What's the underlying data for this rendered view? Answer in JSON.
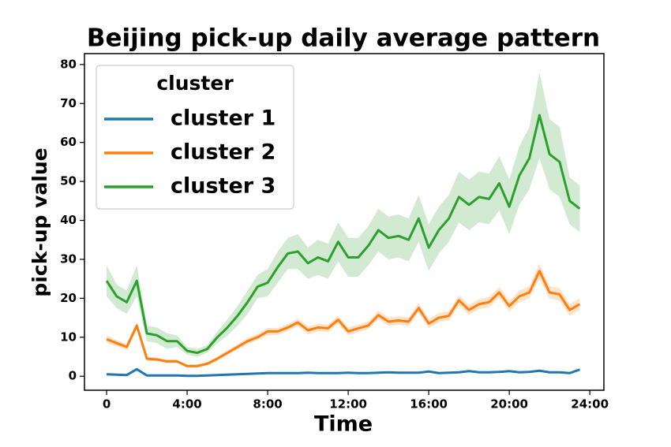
{
  "chart_data": {
    "type": "line",
    "title": "Beijing pick-up daily average pattern",
    "xlabel": "Time",
    "ylabel": "pick-up value",
    "x": [
      0,
      0.5,
      1,
      1.5,
      2,
      2.5,
      3,
      3.5,
      4,
      4.5,
      5,
      5.5,
      6,
      6.5,
      7,
      7.5,
      8,
      8.5,
      9,
      9.5,
      10,
      10.5,
      11,
      11.5,
      12,
      12.5,
      13,
      13.5,
      14,
      14.5,
      15,
      15.5,
      16,
      16.5,
      17,
      17.5,
      18,
      18.5,
      19,
      19.5,
      20,
      20.5,
      21,
      21.5,
      22,
      22.5,
      23,
      23.5
    ],
    "series": [
      {
        "name": "cluster 1",
        "color": "#1f77b4",
        "values": [
          0.5,
          0.4,
          0.3,
          1.8,
          0.2,
          0.2,
          0.2,
          0.2,
          0.1,
          0.1,
          0.2,
          0.3,
          0.4,
          0.5,
          0.6,
          0.7,
          0.8,
          0.8,
          0.8,
          0.8,
          0.9,
          0.8,
          0.8,
          0.8,
          0.9,
          0.8,
          0.8,
          0.9,
          1,
          0.9,
          0.9,
          0.9,
          1.2,
          0.8,
          0.9,
          1,
          1.3,
          1,
          1,
          1.1,
          1.3,
          1,
          1.1,
          1.4,
          1,
          1,
          0.8,
          1.7
        ],
        "ci": [
          0.2,
          0.2,
          0.2,
          0.3,
          0.1,
          0.1,
          0.1,
          0.1,
          0.1,
          0.1,
          0.1,
          0.1,
          0.1,
          0.1,
          0.1,
          0.1,
          0.1,
          0.1,
          0.1,
          0.1,
          0.1,
          0.1,
          0.1,
          0.1,
          0.1,
          0.1,
          0.1,
          0.1,
          0.1,
          0.1,
          0.1,
          0.1,
          0.2,
          0.1,
          0.1,
          0.1,
          0.2,
          0.1,
          0.1,
          0.1,
          0.2,
          0.1,
          0.1,
          0.2,
          0.1,
          0.1,
          0.1,
          0.2
        ]
      },
      {
        "name": "cluster 2",
        "color": "#ff7f0e",
        "values": [
          9.5,
          8.5,
          7.5,
          13,
          4.5,
          4.3,
          3.8,
          3.8,
          2.6,
          2.6,
          3.2,
          4.5,
          6,
          7.5,
          9,
          10,
          11.5,
          11.5,
          12.5,
          13.8,
          11.8,
          12.5,
          12.3,
          14.5,
          11.5,
          12.3,
          13,
          15.7,
          14,
          14.3,
          14,
          17.5,
          13.5,
          15,
          15.5,
          19.5,
          17,
          18.5,
          19,
          21.5,
          18,
          20.5,
          21.5,
          27,
          21.5,
          21,
          17,
          18.5
        ],
        "ci": [
          1,
          0.8,
          0.8,
          1,
          0.5,
          0.5,
          0.5,
          0.4,
          0.4,
          0.4,
          0.4,
          0.5,
          0.6,
          0.7,
          0.8,
          0.8,
          0.9,
          0.9,
          0.9,
          1,
          1,
          1,
          1,
          1,
          1,
          1,
          1,
          1.1,
          1.1,
          1.1,
          1.1,
          1.2,
          1.2,
          1.2,
          1.2,
          1.3,
          1.3,
          1.3,
          1.3,
          1.4,
          1.4,
          1.5,
          1.5,
          2,
          1.6,
          1.6,
          1.5,
          1.5
        ]
      },
      {
        "name": "cluster 3",
        "color": "#2ca02c",
        "values": [
          24.5,
          20.5,
          19,
          24.5,
          11,
          10.5,
          9,
          9,
          6.5,
          6,
          7,
          10,
          12.5,
          15.5,
          19,
          23,
          24,
          28,
          31.5,
          32,
          29,
          30.5,
          29.5,
          34.5,
          30.5,
          30.5,
          33.5,
          37.5,
          35.5,
          36,
          35,
          40.5,
          33,
          37.5,
          40.5,
          46,
          44,
          46,
          45.5,
          49.5,
          43.5,
          51.5,
          56,
          67,
          57,
          55,
          45,
          43
        ],
        "ci": [
          4,
          3,
          3,
          4,
          2,
          2,
          2,
          1.5,
          1,
          1,
          1,
          1.5,
          2,
          2.5,
          3,
          3,
          3.5,
          4,
          4,
          4.5,
          4,
          4.5,
          4.5,
          5,
          5,
          5,
          5,
          5.5,
          5.5,
          5.5,
          5.5,
          6,
          6,
          6,
          6,
          6.5,
          6.5,
          6.5,
          6.5,
          7,
          7,
          7.5,
          8,
          11,
          9,
          9,
          6,
          6
        ]
      }
    ],
    "xlim": [
      -1.1,
      24.7
    ],
    "ylim": [
      -3.6,
      82.8
    ],
    "xticks": [
      0,
      {
        "value": 4,
        "label": "4:00"
      },
      {
        "value": 8,
        "label": "8:00"
      },
      {
        "value": 12,
        "label": "12:00"
      },
      {
        "value": 16,
        "label": "16:00"
      },
      {
        "value": 20,
        "label": "20:00"
      },
      {
        "value": 24,
        "label": "24:00"
      }
    ],
    "yticks": [
      0,
      10,
      20,
      30,
      40,
      50,
      60,
      70,
      80
    ],
    "legend": {
      "title": "cluster",
      "loc": "upper left"
    },
    "grid": false
  }
}
